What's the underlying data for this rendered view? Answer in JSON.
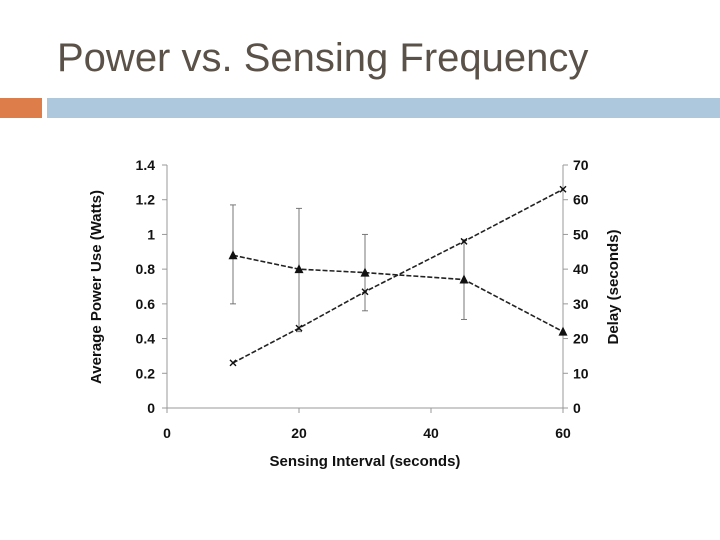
{
  "slide": {
    "title": "Power vs. Sensing Frequency",
    "colors": {
      "accent": "#dc7d4a",
      "rule": "#adc7dc",
      "title": "#5a5148"
    }
  },
  "chart_data": {
    "type": "line",
    "title": "",
    "xlabel": "Sensing Interval (seconds)",
    "ylabel": "Average Power Use (Watts)",
    "y2label": "Delay (seconds)",
    "xlim": [
      0,
      60
    ],
    "ylim": [
      0,
      1.4
    ],
    "y2lim": [
      0,
      70
    ],
    "x_ticks": [
      "0",
      "20",
      "40",
      "60"
    ],
    "y_ticks": [
      "0",
      "0.2",
      "0.4",
      "0.6",
      "0.8",
      "1",
      "1.2",
      "1.4"
    ],
    "y2_ticks": [
      "0",
      "10",
      "20",
      "30",
      "40",
      "50",
      "60",
      "70"
    ],
    "grid": false,
    "legend": "none",
    "series": [
      {
        "marker": "triangle",
        "axis": "left",
        "x": [
          10,
          20,
          30,
          45,
          60
        ],
        "values": [
          0.88,
          0.8,
          0.78,
          0.74,
          0.44
        ],
        "err_low": [
          0.6,
          0.44,
          0.56,
          0.51,
          null
        ],
        "err_high": [
          1.17,
          1.15,
          1.0,
          0.97,
          null
        ]
      },
      {
        "marker": "cross",
        "axis": "right",
        "x": [
          10,
          20,
          30,
          45,
          60
        ],
        "values": [
          13,
          23,
          33.5,
          48,
          63
        ]
      }
    ]
  }
}
